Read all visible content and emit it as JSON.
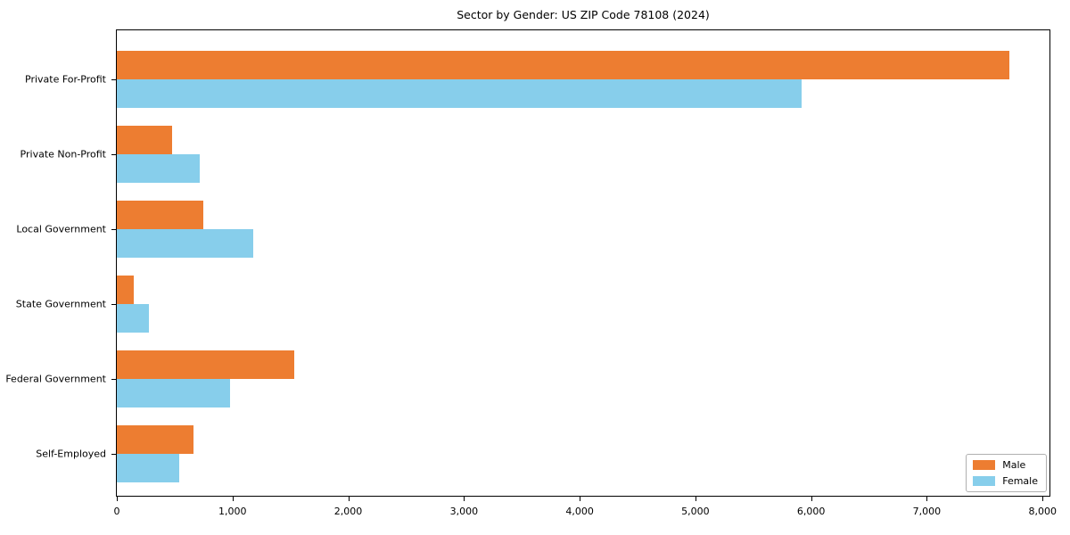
{
  "title": "Sector by Gender: US ZIP Code 78108 (2024)",
  "chart_data": {
    "type": "bar",
    "orientation": "horizontal",
    "title": "Sector by Gender: US ZIP Code 78108 (2024)",
    "categories": [
      "Private For-Profit",
      "Private Non-Profit",
      "Local Government",
      "State Government",
      "Federal Government",
      "Self-Employed"
    ],
    "series": [
      {
        "name": "Male",
        "color": "#ED7D31",
        "values": [
          7710,
          480,
          750,
          150,
          1530,
          660
        ]
      },
      {
        "name": "Female",
        "color": "#87CEEB",
        "values": [
          5920,
          720,
          1180,
          280,
          980,
          540
        ]
      }
    ],
    "xlabel": "",
    "ylabel": "",
    "xlim": [
      0,
      8060
    ],
    "xticks": [
      0,
      1000,
      2000,
      3000,
      4000,
      5000,
      6000,
      7000,
      8000
    ],
    "xtick_labels": [
      "0",
      "1,000",
      "2,000",
      "3,000",
      "4,000",
      "5,000",
      "6,000",
      "7,000",
      "8,000"
    ],
    "grid": false,
    "legend": {
      "position": "lower right",
      "entries": [
        "Male",
        "Female"
      ]
    }
  }
}
